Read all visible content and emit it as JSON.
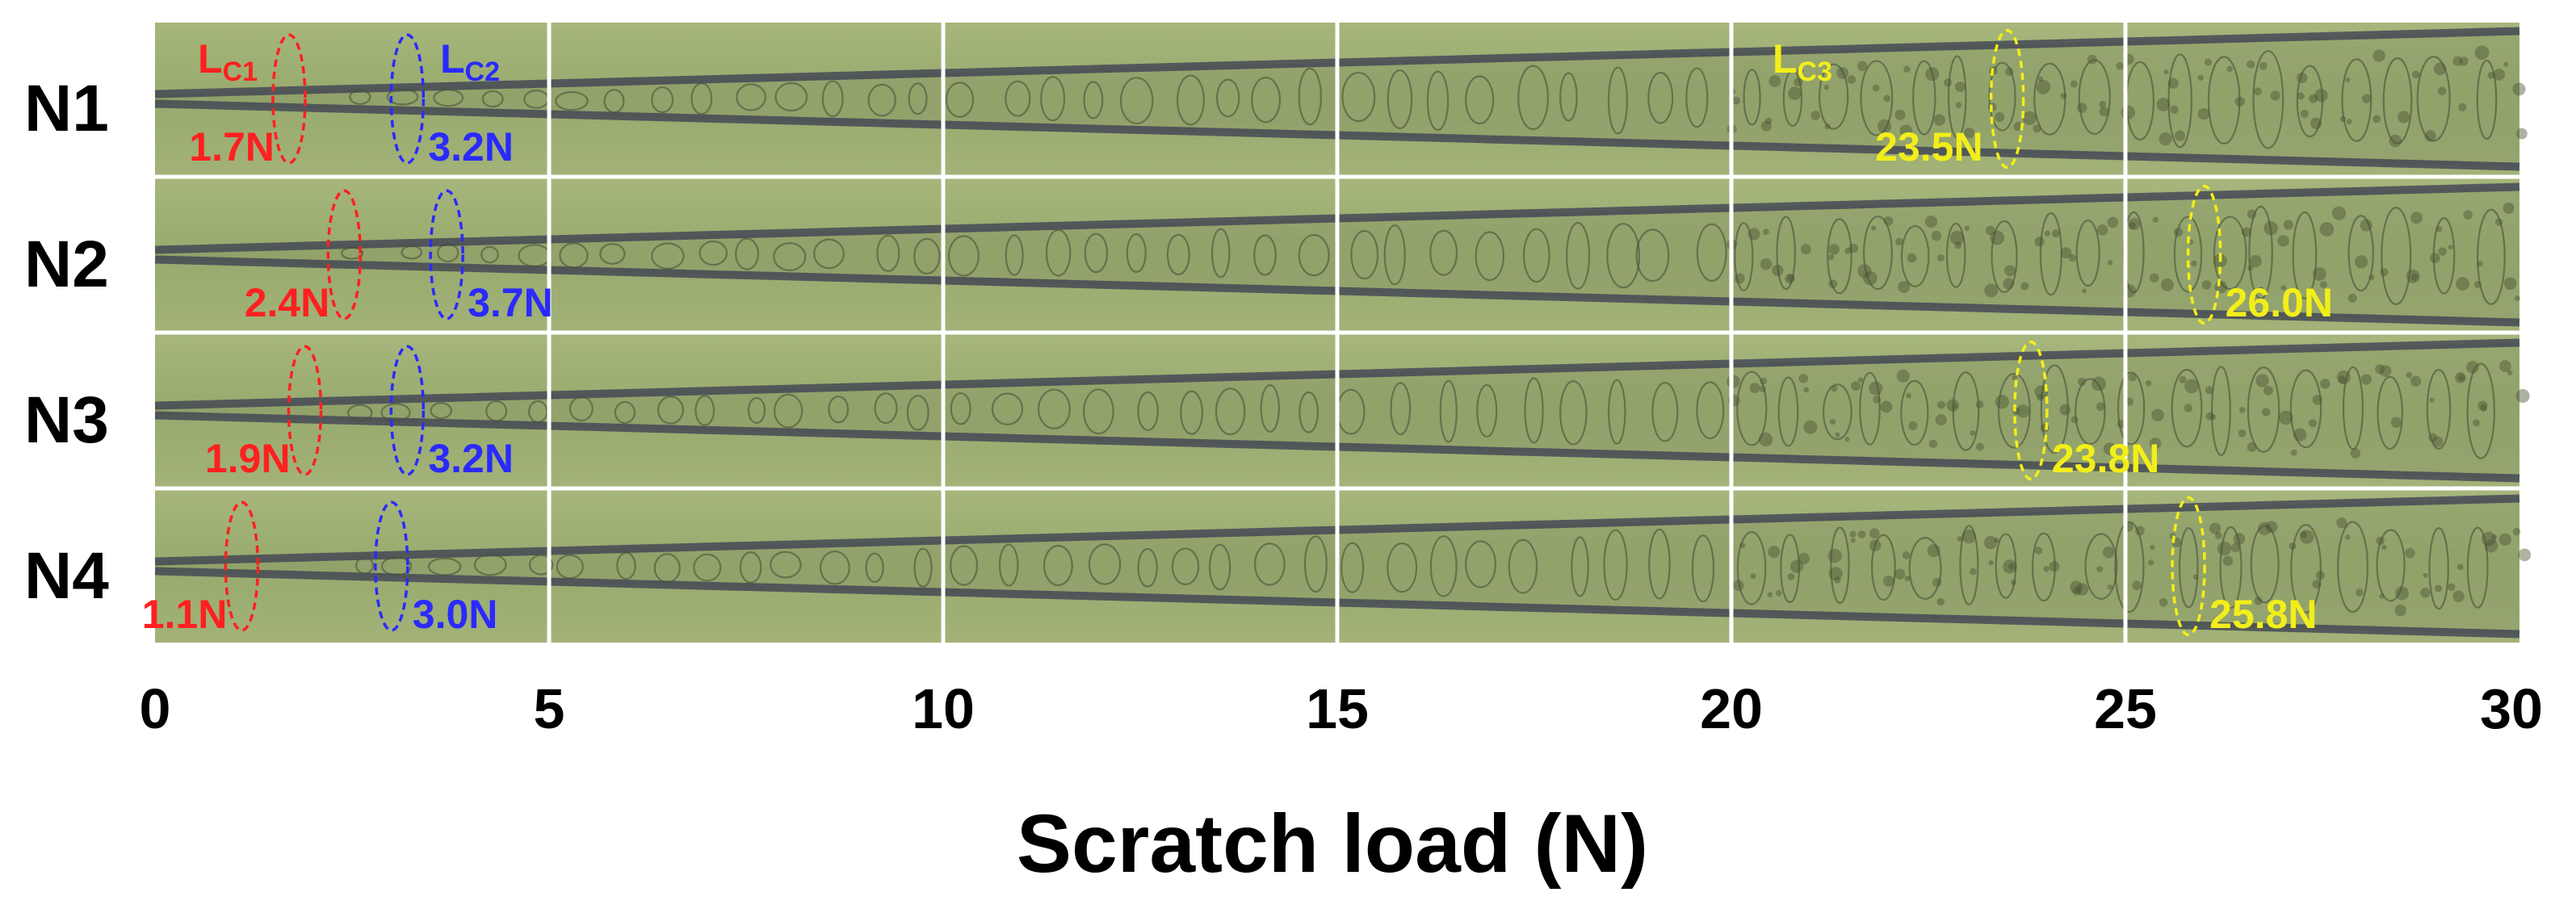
{
  "figure": {
    "rows": [
      {
        "label": "N1",
        "markers": [
          {
            "kind": "lc1",
            "load": 1.7,
            "text": "1.7N"
          },
          {
            "kind": "lc2",
            "load": 3.2,
            "text": "3.2N"
          },
          {
            "kind": "lc3",
            "load": 23.5,
            "text": "23.5N"
          }
        ]
      },
      {
        "label": "N2",
        "markers": [
          {
            "kind": "lc1",
            "load": 2.4,
            "text": "2.4N"
          },
          {
            "kind": "lc2",
            "load": 3.7,
            "text": "3.7N"
          },
          {
            "kind": "lc3",
            "load": 26.0,
            "text": "26.0N"
          }
        ]
      },
      {
        "label": "N3",
        "markers": [
          {
            "kind": "lc1",
            "load": 1.9,
            "text": "1.9N"
          },
          {
            "kind": "lc2",
            "load": 3.2,
            "text": "3.2N"
          },
          {
            "kind": "lc3",
            "load": 23.8,
            "text": "23.8N"
          }
        ]
      },
      {
        "label": "N4",
        "markers": [
          {
            "kind": "lc1",
            "load": 1.1,
            "text": "1.1N"
          },
          {
            "kind": "lc2",
            "load": 3.0,
            "text": "3.0N"
          },
          {
            "kind": "lc3",
            "load": 25.8,
            "text": "25.8N"
          }
        ]
      }
    ],
    "headers": [
      {
        "kind": "lc1",
        "main": "L",
        "sub": "C1"
      },
      {
        "kind": "lc2",
        "main": "L",
        "sub": "C2"
      },
      {
        "kind": "lc3",
        "main": "L",
        "sub": "C3"
      }
    ],
    "colors": {
      "lc1": "#ff2020",
      "lc2": "#2a2aff",
      "lc3": "#f2ee1a",
      "image_bg": "#9aab72",
      "track": "#3a3c52",
      "grid": "#ffffff"
    },
    "x_axis": {
      "title": "Scratch load (N)",
      "ticks": [
        "0",
        "5",
        "10",
        "15",
        "20",
        "25",
        "30"
      ],
      "range": [
        0,
        30
      ]
    }
  }
}
